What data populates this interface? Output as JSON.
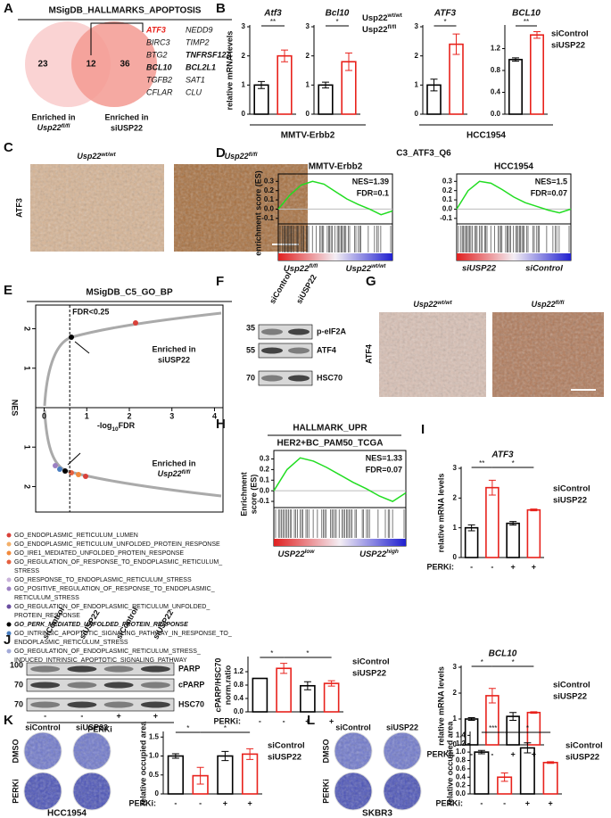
{
  "A": {
    "label": "A",
    "title": "MSigDB_HALLMARKS_APOPTOSIS",
    "venn": {
      "left": 23,
      "overlap": 12,
      "right": 36
    },
    "genes": [
      [
        "ATF3",
        "NEDD9"
      ],
      [
        "BIRC3",
        "TIMP2"
      ],
      [
        "BTG2",
        "TNFRSF12A"
      ],
      [
        "BCL10",
        "BCL2L1"
      ],
      [
        "TGFB2",
        "SAT1"
      ],
      [
        "CFLAR",
        "CLU"
      ]
    ],
    "left_caption": [
      "Enriched in",
      {
        "base": "Usp22",
        "sup": "fl/fl"
      }
    ],
    "right_caption": [
      "Enriched in",
      "siUSP22"
    ]
  },
  "B": {
    "label": "B",
    "groups": [
      "MMTV-Erbb2",
      "HCC1954"
    ]
  },
  "C": {
    "label": "C",
    "titles": [
      {
        "base": "Usp22",
        "sup": "wt/wt"
      },
      {
        "base": "Usp22",
        "sup": "fl/fl"
      }
    ],
    "stain": "ATF3"
  },
  "D": {
    "label": "D",
    "title": "C3_ATF3_Q6"
  },
  "E": {
    "label": "E",
    "title": "MSigDB_C5_GO_BP",
    "fdr_label": "FDR<0.25",
    "fdr_x": 0.6,
    "xlabel": {
      "pre": "-log",
      "sub": "10",
      "post": "FDR"
    },
    "ylabel": "NES",
    "xlim": [
      -0.2,
      4.2
    ],
    "xticks": [
      0,
      1,
      2,
      3,
      4
    ],
    "ylim": [
      -2.6,
      2.6
    ],
    "yticks": [
      2,
      1,
      {
        "value": -1,
        "label": "1"
      },
      {
        "value": -2,
        "label": "2"
      }
    ],
    "upper_caption": [
      "Enriched in",
      "siUSP22"
    ],
    "lower_caption": [
      "Enriched in",
      {
        "base": "Usp22",
        "sup": "fl/fl"
      }
    ],
    "legend": [
      {
        "lines": [
          "GO_ENDOPLASMIC_RETICULUM_LUMEN"
        ],
        "color": "#d9413a"
      },
      {
        "lines": [
          "GO_ENDOPLASMIC_RETICULUM_UNFOLDED_PROTEIN_RESPONSE"
        ],
        "color": "#f3b06a"
      },
      {
        "lines": [
          "GO_IRE1_MEDIATED_UNFOLDED_PROTEIN_RESPONSE"
        ],
        "color": "#f28a3c"
      },
      {
        "lines": [
          "GO_REGULATION_OF_RESPONSE_TO_ENDOPLASMIC_RETICULUM_",
          "STRESS"
        ],
        "color": "#e5603f"
      },
      {
        "lines": [
          "GO_RESPONSE_TO_ENDOPLASMIC_RETICULUM_STRESS"
        ],
        "color": "#c9b3da"
      },
      {
        "lines": [
          "GO_POSITIVE_REGULATION_OF_RESPONSE_TO_ENDOPLASMIC_",
          "RETICULUM_STRESS"
        ],
        "color": "#9c80c2"
      },
      {
        "lines": [
          "GO_REGULATION_OF_ENDOPLASMIC_RETICULUM_UNFOLDED_",
          "PROTEIN_RESPONSE"
        ],
        "color": "#6a4ea0"
      },
      {
        "lines": [
          "GO_PERK_MEDIATED_UNFOLDED_PROTEIN_RESPONSE"
        ],
        "color": "#000000"
      },
      {
        "lines": [
          "GO_INTRINSIC_APOPTOTIC_SIGNALING_PATHWAY_IN_RESPONSE_TO_",
          "ENDOPLASMIC_RETICULUM_STRESS"
        ],
        "color": "#4a7fc1"
      },
      {
        "lines": [
          "GO_REGULATION_OF_ENDOPLASMIC_RETICULUM_STRESS_",
          "INDUCED_INTRINSIC_APOPTOTIC_SIGNALING_PATHWAY"
        ],
        "color": "#a3aad8"
      }
    ]
  },
  "F": {
    "label": "F",
    "lanes": [
      "siControl",
      "siUSP22"
    ],
    "markers": [
      35,
      55,
      70
    ],
    "bands": [
      "p-eIF2A",
      "ATF4",
      "HSC70"
    ]
  },
  "G": {
    "label": "G",
    "titles": [
      {
        "base": "Usp22",
        "sup": "wt/wt"
      },
      {
        "base": "Usp22",
        "sup": "fl/fl"
      }
    ],
    "stain": "ATF4"
  },
  "H": {
    "label": "H",
    "title": "HALLMARK_UPR",
    "subtitle": "HER2+BC_PAM50_TCGA"
  },
  "I": {
    "label": "I"
  },
  "J": {
    "label": "J",
    "lanes": [
      "siControl",
      "siUSP22",
      "siControl",
      "siUSP22"
    ],
    "markers": [
      100,
      70,
      70
    ],
    "bands": [
      "PARP",
      "cPARP",
      "HSC70"
    ],
    "signs": [
      "-",
      "-",
      "+",
      "+"
    ],
    "treatment": "PERKi"
  },
  "K": {
    "label": "K",
    "columns": [
      "siControl",
      "siUSP22"
    ],
    "rows": [
      "DMSO",
      "PERKi"
    ],
    "cells": "HCC1954"
  },
  "L": {
    "label": "L",
    "columns": [
      "siControl",
      "siUSP22"
    ],
    "rows": [
      "DMSO",
      "PERKi"
    ],
    "cells": "SKBR3"
  },
  "charts": [
    {
      "type": "bar",
      "title": "Atf3",
      "ylabel": "relative mRNA levels",
      "ylim": [
        0,
        3
      ],
      "yticks": [
        0,
        1,
        2,
        3
      ],
      "categories": [
        null,
        null
      ],
      "values": [
        1.0,
        2.0
      ],
      "errors": [
        0.12,
        0.2
      ],
      "colors": [
        "#000000",
        "#e8221c"
      ],
      "significance": [
        "**"
      ]
    },
    {
      "type": "bar",
      "title": "Bcl10",
      "ylim": [
        0,
        3
      ],
      "yticks": [
        0,
        1,
        2,
        3
      ],
      "categories": [
        null,
        null
      ],
      "values": [
        1.0,
        1.8
      ],
      "errors": [
        0.1,
        0.3
      ],
      "colors": [
        "#000000",
        "#e8221c"
      ],
      "significance": [
        "*"
      ],
      "legend": [
        {
          "name": {
            "base": "Usp22",
            "sup": "wt/wt"
          },
          "color": "#000000"
        },
        {
          "name": {
            "base": "Usp22",
            "sup": "fl/fl"
          },
          "color": "#e8221c"
        }
      ]
    },
    {
      "type": "bar",
      "title": "ATF3",
      "ylim": [
        0,
        3
      ],
      "yticks": [
        0,
        1,
        2,
        3
      ],
      "categories": [
        null,
        null
      ],
      "values": [
        1.0,
        2.4
      ],
      "errors": [
        0.2,
        0.35
      ],
      "colors": [
        "#000000",
        "#e8221c"
      ],
      "significance": [
        "*"
      ]
    },
    {
      "type": "bar",
      "title": "BCL10",
      "ylim": [
        0,
        1.6
      ],
      "yticks": [
        {
          "value": 0,
          "label": "0.0"
        },
        0.4,
        0.8,
        1.2
      ],
      "categories": [
        null,
        null
      ],
      "values": [
        1.0,
        1.45
      ],
      "errors": [
        0.03,
        0.06
      ],
      "colors": [
        "#000000",
        "#e8221c"
      ],
      "significance": [
        "**"
      ],
      "legend": [
        {
          "name": "siControl",
          "color": "#000000"
        },
        {
          "name": "siUSP22",
          "color": "#e8221c"
        }
      ]
    },
    {
      "type": "bar",
      "title": "ATF3",
      "ylabel": "relative mRNA levels",
      "xlabel": "PERKi:",
      "ylim": [
        0,
        3
      ],
      "yticks": [
        0,
        1,
        2,
        3
      ],
      "categories": [
        "-",
        "-",
        "+",
        "+"
      ],
      "values": [
        1.0,
        2.35,
        1.15,
        1.6
      ],
      "errors": [
        0.1,
        0.25,
        0.06,
        0.03
      ],
      "colors": [
        "#000000",
        "#e8221c",
        "#000000",
        "#e8221c"
      ],
      "significance": [
        "**",
        "*"
      ],
      "legend": [
        {
          "name": "siControl",
          "color": "#000000"
        },
        {
          "name": "siUSP22",
          "color": "#e8221c"
        }
      ]
    },
    {
      "type": "bar",
      "title": "BCL10",
      "ylabel": "relative mRNA levels",
      "xlabel": "PERKi:",
      "ylim": [
        0,
        3
      ],
      "yticks": [
        0,
        1,
        2,
        3
      ],
      "categories": [
        "-",
        "-",
        "+",
        "+"
      ],
      "values": [
        1.0,
        1.9,
        1.1,
        1.25
      ],
      "errors": [
        0.05,
        0.28,
        0.15,
        0.03
      ],
      "colors": [
        "#000000",
        "#e8221c",
        "#000000",
        "#e8221c"
      ],
      "significance": [
        "*",
        "*"
      ],
      "legend": [
        {
          "name": "siControl",
          "color": "#000000"
        },
        {
          "name": "siUSP22",
          "color": "#e8221c"
        }
      ]
    },
    {
      "type": "bar",
      "ylabel": [
        "cPARP/HSC70",
        "norm.ratio"
      ],
      "xlabel": "PERKi:",
      "ylim": [
        0,
        1.6
      ],
      "yticks": [
        {
          "value": 0,
          "label": "0.0"
        },
        0.4,
        0.8,
        1.2
      ],
      "categories": [
        "-",
        "-",
        "+",
        "+"
      ],
      "values": [
        1.0,
        1.3,
        0.78,
        0.85
      ],
      "errors": [
        0.0,
        0.15,
        0.12,
        0.08
      ],
      "colors": [
        "#000000",
        "#e8221c",
        "#000000",
        "#e8221c"
      ],
      "significance": [
        "*",
        "*"
      ],
      "legend": [
        {
          "name": "siControl",
          "color": "#000000"
        },
        {
          "name": "siUSP22",
          "color": "#e8221c"
        }
      ]
    },
    {
      "type": "bar",
      "ylabel": "relative occupied area",
      "xlabel": "PERKi:",
      "ylim": [
        0,
        1.6
      ],
      "yticks": [
        0,
        0.5,
        {
          "value": 1,
          "label": "1.0"
        },
        {
          "value": 1.5,
          "label": "1.5"
        }
      ],
      "categories": [
        "-",
        "-",
        "+",
        "+"
      ],
      "values": [
        1.0,
        0.48,
        1.0,
        1.05
      ],
      "errors": [
        0.06,
        0.22,
        0.12,
        0.14
      ],
      "colors": [
        "#000000",
        "#e8221c",
        "#000000",
        "#e8221c"
      ],
      "significance": [
        "*",
        "*"
      ],
      "legend": [
        {
          "name": "siControl",
          "color": "#000000"
        },
        {
          "name": "siUSP22",
          "color": "#e8221c"
        }
      ]
    },
    {
      "type": "bar",
      "ylabel": "relative occupied area",
      "xlabel": "PERKi:",
      "ylim": [
        0,
        1.45
      ],
      "yticks": [
        {
          "value": 0,
          "label": "0.0"
        },
        0.2,
        0.4,
        0.6,
        0.8,
        {
          "value": 1,
          "label": "1.0"
        },
        1.2,
        1.4
      ],
      "categories": [
        "-",
        "-",
        "+",
        "+"
      ],
      "values": [
        1.0,
        0.4,
        1.1,
        0.75
      ],
      "errors": [
        0.04,
        0.1,
        0.12,
        0.02
      ],
      "colors": [
        "#000000",
        "#e8221c",
        "#000000",
        "#e8221c"
      ],
      "significance": [
        "***",
        "*"
      ],
      "legend": [
        {
          "name": "siControl",
          "color": "#000000"
        },
        {
          "name": "siUSP22",
          "color": "#e8221c"
        }
      ]
    },
    {
      "type": "line",
      "title": "MMTV-Erbb2",
      "ylabel": "enrichment score (ES)",
      "ylim": [
        -0.15,
        0.38
      ],
      "yticks": [
        -0.1,
        {
          "value": 0,
          "label": "0.0"
        },
        0.1,
        0.2,
        0.3
      ],
      "values": [
        0,
        0.15,
        0.26,
        0.3,
        0.27,
        0.19,
        0.11,
        0.05,
        0.0,
        -0.06,
        -0.02
      ],
      "color": "#22dd22",
      "annotations": [
        "NES=1.39",
        "FDR=0.1"
      ],
      "ends": [
        {
          "base": "Usp22",
          "sup": "fl/fl"
        },
        {
          "base": "Usp22",
          "sup": "wt/wt"
        }
      ],
      "end_colors": [
        "#e8221c",
        "#2020cc"
      ]
    },
    {
      "type": "line",
      "title": "HCC1954",
      "ylim": [
        -0.15,
        0.38
      ],
      "yticks": [
        -0.1,
        {
          "value": 0,
          "label": "0.0"
        },
        0.1,
        0.2,
        0.3
      ],
      "values": [
        0,
        0.2,
        0.3,
        0.28,
        0.21,
        0.13,
        0.07,
        0.03,
        -0.01,
        -0.04,
        0.0
      ],
      "color": "#22dd22",
      "annotations": [
        "NES=1.5",
        "FDR=0.07"
      ],
      "ends": [
        "siUSP22",
        "siControl"
      ],
      "end_colors": [
        "#e8221c",
        "#2020cc"
      ]
    },
    {
      "type": "line",
      "ylabel": [
        "Enrichment",
        "score (ES)"
      ],
      "ylim": [
        -0.15,
        0.38
      ],
      "yticks": [
        -0.1,
        {
          "value": 0,
          "label": "0.0"
        },
        0.1,
        0.2,
        0.3
      ],
      "values": [
        0,
        0.2,
        0.31,
        0.28,
        0.22,
        0.15,
        0.08,
        0.02,
        -0.05,
        -0.1,
        -0.02
      ],
      "color": "#22dd22",
      "annotations": [
        "NES=1.33",
        "FDR=0.07"
      ],
      "ends": [
        {
          "base": "USP22",
          "sup": "low"
        },
        {
          "base": "USP22",
          "sup": "high"
        }
      ],
      "end_colors": [
        "#e8221c",
        "#2020cc"
      ]
    }
  ]
}
